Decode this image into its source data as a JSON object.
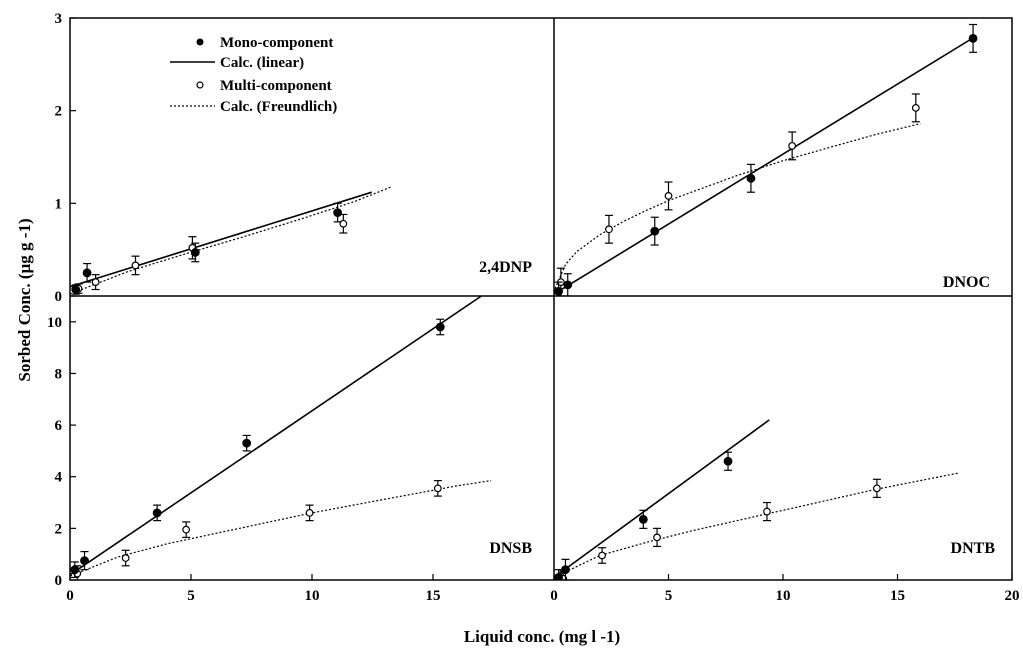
{
  "axis_titles": {
    "x": "Liquid conc. (mg l -1)",
    "y": "Sorbed Conc. (µg g -1)"
  },
  "legend": [
    {
      "label": "Mono-component",
      "marker": "filled-circle"
    },
    {
      "label": "Calc. (linear)",
      "marker": "solid-line"
    },
    {
      "label": "Multi-component",
      "marker": "open-circle"
    },
    {
      "label": "Calc. (Freundlich)",
      "marker": "dotted-line"
    }
  ],
  "chart_data": [
    {
      "type": "scatter",
      "panel": "top-left",
      "label": "2,4DNP",
      "xlim": [
        0,
        17
      ],
      "ylim": [
        0,
        3
      ],
      "xticks": [],
      "yticks": [
        "0",
        "1",
        "2",
        "3"
      ],
      "mono": {
        "points": [
          {
            "x": 0.2,
            "y": 0.07,
            "err": 0.05
          },
          {
            "x": 0.6,
            "y": 0.25,
            "err": 0.1
          },
          {
            "x": 4.4,
            "y": 0.47,
            "err": 0.1
          },
          {
            "x": 9.4,
            "y": 0.9,
            "err": 0.1
          }
        ],
        "fit": {
          "x": [
            0,
            10.6
          ],
          "y": [
            0.1,
            1.12
          ]
        }
      },
      "multi": {
        "points": [
          {
            "x": 0.3,
            "y": 0.08,
            "err": 0.05
          },
          {
            "x": 0.9,
            "y": 0.15,
            "err": 0.08
          },
          {
            "x": 2.3,
            "y": 0.33,
            "err": 0.1
          },
          {
            "x": 4.3,
            "y": 0.52,
            "err": 0.12
          },
          {
            "x": 9.6,
            "y": 0.78,
            "err": 0.1
          }
        ],
        "fit": {
          "x": [
            0,
            2,
            4,
            6,
            8,
            10,
            11.3
          ],
          "y": [
            0.02,
            0.26,
            0.45,
            0.63,
            0.82,
            1.02,
            1.18
          ]
        }
      }
    },
    {
      "type": "scatter",
      "panel": "top-right",
      "label": "DNOC",
      "xlim": [
        0,
        20
      ],
      "ylim": [
        0,
        3
      ],
      "xticks": [],
      "yticks": [],
      "mono": {
        "points": [
          {
            "x": 0.2,
            "y": 0.05,
            "err": 0.1
          },
          {
            "x": 0.6,
            "y": 0.12,
            "err": 0.12
          },
          {
            "x": 4.4,
            "y": 0.7,
            "err": 0.15
          },
          {
            "x": 8.6,
            "y": 1.27,
            "err": 0.15
          },
          {
            "x": 18.3,
            "y": 2.78,
            "err": 0.15
          }
        ],
        "fit": {
          "x": [
            0,
            18.4
          ],
          "y": [
            0.02,
            2.8
          ]
        }
      },
      "multi": {
        "points": [
          {
            "x": 0.3,
            "y": 0.15,
            "err": 0.15
          },
          {
            "x": 2.4,
            "y": 0.72,
            "err": 0.15
          },
          {
            "x": 5.0,
            "y": 1.08,
            "err": 0.15
          },
          {
            "x": 10.4,
            "y": 1.62,
            "err": 0.15
          },
          {
            "x": 15.8,
            "y": 2.03,
            "err": 0.15
          }
        ],
        "fit": {
          "x": [
            0.05,
            0.5,
            1,
            2,
            3,
            4,
            5,
            6,
            8,
            10,
            12,
            14,
            16
          ],
          "y": [
            0.08,
            0.34,
            0.48,
            0.66,
            0.8,
            0.92,
            1.03,
            1.12,
            1.3,
            1.46,
            1.6,
            1.74,
            1.86
          ]
        }
      }
    },
    {
      "type": "scatter",
      "panel": "bottom-left",
      "label": "DNSB",
      "xlim": [
        0,
        20
      ],
      "ylim": [
        0,
        11
      ],
      "xticks": [
        "0",
        "5",
        "10",
        "15"
      ],
      "yticks": [
        "0",
        "2",
        "4",
        "6",
        "8",
        "10"
      ],
      "mono": {
        "points": [
          {
            "x": 0.2,
            "y": 0.4,
            "err": 0.3
          },
          {
            "x": 0.6,
            "y": 0.75,
            "err": 0.35
          },
          {
            "x": 3.6,
            "y": 2.6,
            "err": 0.3
          },
          {
            "x": 7.3,
            "y": 5.3,
            "err": 0.3
          },
          {
            "x": 15.3,
            "y": 9.8,
            "err": 0.3
          }
        ],
        "fit": {
          "x": [
            0,
            17.0
          ],
          "y": [
            0.2,
            11
          ]
        }
      },
      "multi": {
        "points": [
          {
            "x": 0.3,
            "y": 0.25,
            "err": 0.3
          },
          {
            "x": 2.3,
            "y": 0.85,
            "err": 0.3
          },
          {
            "x": 4.8,
            "y": 1.95,
            "err": 0.3
          },
          {
            "x": 9.9,
            "y": 2.6,
            "err": 0.3
          },
          {
            "x": 15.2,
            "y": 3.55,
            "err": 0.3
          }
        ],
        "fit": {
          "x": [
            0,
            2,
            4,
            6,
            8,
            10,
            12,
            14,
            16,
            17.4
          ],
          "y": [
            0.15,
            0.9,
            1.4,
            1.8,
            2.2,
            2.6,
            2.95,
            3.3,
            3.65,
            3.85
          ]
        }
      }
    },
    {
      "type": "scatter",
      "panel": "bottom-right",
      "label": "DNTB",
      "xlim": [
        0,
        20
      ],
      "ylim": [
        0,
        11
      ],
      "xticks": [
        "0",
        "5",
        "10",
        "15",
        "20"
      ],
      "yticks": [],
      "mono": {
        "points": [
          {
            "x": 0.2,
            "y": 0.1,
            "err": 0.3
          },
          {
            "x": 0.5,
            "y": 0.4,
            "err": 0.4
          },
          {
            "x": 3.9,
            "y": 2.35,
            "err": 0.35
          },
          {
            "x": 7.6,
            "y": 4.6,
            "err": 0.35
          }
        ],
        "fit": {
          "x": [
            0,
            9.4
          ],
          "y": [
            0.1,
            6.2
          ]
        }
      },
      "multi": {
        "points": [
          {
            "x": 0.4,
            "y": 0.05,
            "err": 0.3
          },
          {
            "x": 2.1,
            "y": 0.95,
            "err": 0.3
          },
          {
            "x": 4.5,
            "y": 1.65,
            "err": 0.35
          },
          {
            "x": 9.3,
            "y": 2.65,
            "err": 0.35
          },
          {
            "x": 14.1,
            "y": 3.55,
            "err": 0.35
          }
        ],
        "fit": {
          "x": [
            0,
            2,
            4,
            6,
            8,
            10,
            12,
            14,
            16,
            17.7
          ],
          "y": [
            0.1,
            0.95,
            1.45,
            1.9,
            2.3,
            2.7,
            3.1,
            3.5,
            3.85,
            4.15
          ]
        }
      }
    }
  ]
}
